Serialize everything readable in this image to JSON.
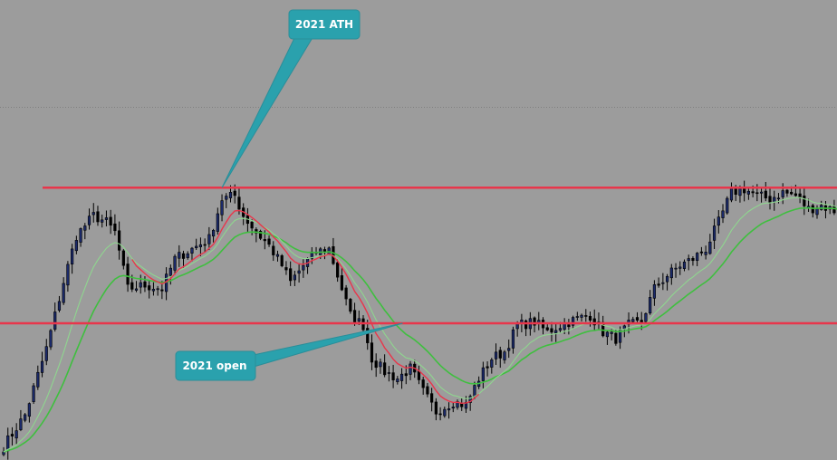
{
  "chart_data": {
    "type": "candlestick",
    "title": "",
    "xlabel": "",
    "ylabel": "",
    "grid": false,
    "ylim": [
      0,
      100
    ],
    "x_count": 196,
    "colors": {
      "background": "#9c9c9c",
      "bull_candle": "#1b2a6b",
      "bear_candle": "#000000",
      "level_line": "#e8364b",
      "fast_ma": "#e8364b",
      "slow_ma_1": "#8fd68f",
      "slow_ma_2": "#3fbf3f",
      "callout": "#2aa1ad"
    },
    "levels": [
      {
        "id": "ath",
        "label": "2021 ATH",
        "value": 78.4
      },
      {
        "id": "open",
        "label": "2021 open",
        "value": 37.6
      }
    ],
    "waypoints": [
      [
        0,
        0.5
      ],
      [
        5,
        10
      ],
      [
        10,
        30
      ],
      [
        14,
        50
      ],
      [
        17,
        64
      ],
      [
        21,
        70
      ],
      [
        24,
        68
      ],
      [
        26,
        65
      ],
      [
        29,
        48
      ],
      [
        33,
        49
      ],
      [
        37,
        48
      ],
      [
        40,
        57
      ],
      [
        44,
        60
      ],
      [
        48,
        63
      ],
      [
        51,
        75
      ],
      [
        54,
        76
      ],
      [
        56,
        70
      ],
      [
        59,
        65
      ],
      [
        62,
        61
      ],
      [
        65,
        55
      ],
      [
        67,
        50
      ],
      [
        70,
        55
      ],
      [
        73,
        59
      ],
      [
        76,
        60
      ],
      [
        78,
        52
      ],
      [
        81,
        40
      ],
      [
        84,
        37
      ],
      [
        86,
        27
      ],
      [
        89,
        23
      ],
      [
        92,
        21
      ],
      [
        95,
        24
      ],
      [
        98,
        17
      ],
      [
        101,
        11
      ],
      [
        105,
        14
      ],
      [
        108,
        13
      ],
      [
        111,
        21
      ],
      [
        114,
        27
      ],
      [
        117,
        29
      ],
      [
        120,
        37
      ],
      [
        124,
        38
      ],
      [
        127,
        35
      ],
      [
        130,
        37
      ],
      [
        134,
        39
      ],
      [
        137,
        40
      ],
      [
        140,
        35
      ],
      [
        143,
        33
      ],
      [
        146,
        37
      ],
      [
        149,
        38
      ],
      [
        152,
        48
      ],
      [
        155,
        52
      ],
      [
        158,
        55
      ],
      [
        161,
        57
      ],
      [
        164,
        60
      ],
      [
        167,
        68
      ],
      [
        170,
        77
      ],
      [
        173,
        78
      ],
      [
        176,
        76
      ],
      [
        179,
        75
      ],
      [
        182,
        77
      ],
      [
        185,
        76
      ],
      [
        188,
        72
      ],
      [
        191,
        73
      ],
      [
        195,
        71
      ]
    ],
    "annotations": [
      {
        "id": "ath",
        "text": "2021 ATH",
        "x_index": 51,
        "value": 78.4
      },
      {
        "id": "open",
        "text": "2021 open",
        "x_index": 86,
        "value": 37.6
      }
    ]
  }
}
